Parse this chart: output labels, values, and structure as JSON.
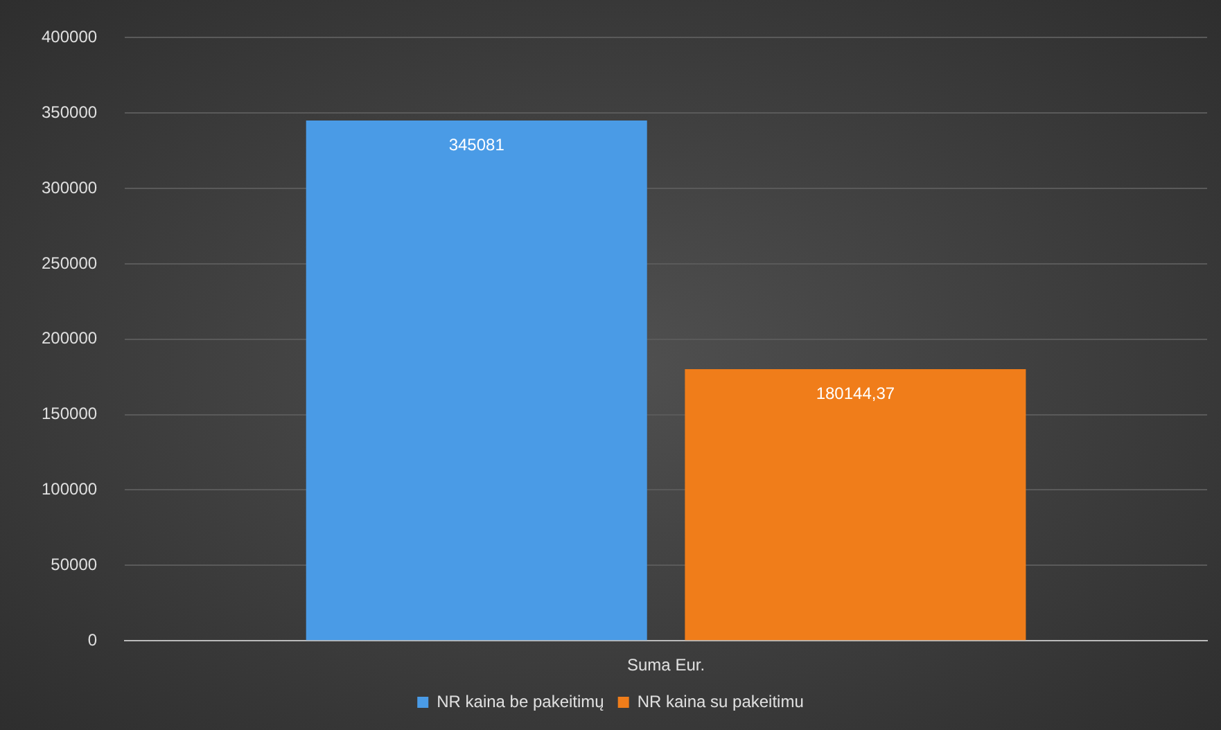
{
  "chart_data": {
    "type": "bar",
    "categories": [
      "Suma Eur."
    ],
    "series": [
      {
        "name": "NR kaina be pakeitimų",
        "color": "#4a9be6",
        "values": [
          345081
        ],
        "value_labels": [
          "345081"
        ]
      },
      {
        "name": "NR kaina su pakeitimu",
        "color": "#f07d1a",
        "values": [
          180144.37
        ],
        "value_labels": [
          "180144,37"
        ]
      }
    ],
    "ylim": [
      0,
      400000
    ],
    "yticks": [
      0,
      50000,
      100000,
      150000,
      200000,
      250000,
      300000,
      350000,
      400000
    ],
    "grid": "y",
    "legend": "bottom"
  }
}
